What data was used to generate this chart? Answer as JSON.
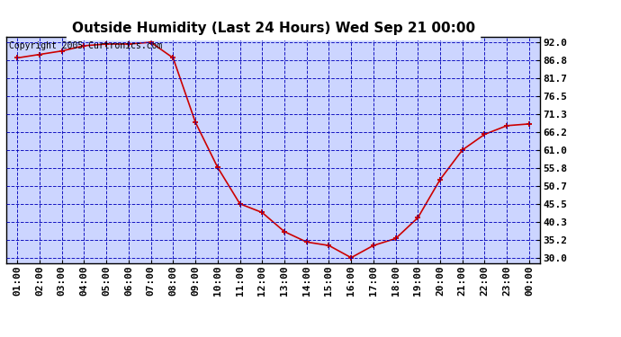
{
  "title": "Outside Humidity (Last 24 Hours) Wed Sep 21 00:00",
  "copyright": "Copyright 2005 Curtronics.com",
  "x_labels": [
    "01:00",
    "02:00",
    "03:00",
    "04:00",
    "05:00",
    "06:00",
    "07:00",
    "08:00",
    "09:00",
    "10:00",
    "11:00",
    "12:00",
    "13:00",
    "14:00",
    "15:00",
    "16:00",
    "17:00",
    "18:00",
    "19:00",
    "20:00",
    "21:00",
    "22:00",
    "23:00",
    "00:00"
  ],
  "x_values": [
    1,
    2,
    3,
    4,
    5,
    6,
    7,
    8,
    9,
    10,
    11,
    12,
    13,
    14,
    15,
    16,
    17,
    18,
    19,
    20,
    21,
    22,
    23,
    24
  ],
  "y_values": [
    87.5,
    88.5,
    89.5,
    91.0,
    91.5,
    91.5,
    92.0,
    87.5,
    69.0,
    56.0,
    45.5,
    43.0,
    37.5,
    34.5,
    33.5,
    30.0,
    33.5,
    35.5,
    41.5,
    52.5,
    61.0,
    65.5,
    68.0,
    68.5
  ],
  "ylim": [
    28.5,
    93.5
  ],
  "yticks": [
    30.0,
    35.2,
    40.3,
    45.5,
    50.7,
    55.8,
    61.0,
    66.2,
    71.3,
    76.5,
    81.7,
    86.8,
    92.0
  ],
  "line_color": "#cc0000",
  "marker_color": "#cc0000",
  "fig_bg_color": "#ffffff",
  "plot_bg_color": "#ccd5ff",
  "grid_color": "#0000bb",
  "title_fontsize": 11,
  "copyright_fontsize": 7,
  "tick_fontsize": 8,
  "ytick_fontsize": 8,
  "title_color": "#000000",
  "border_color": "#000000"
}
